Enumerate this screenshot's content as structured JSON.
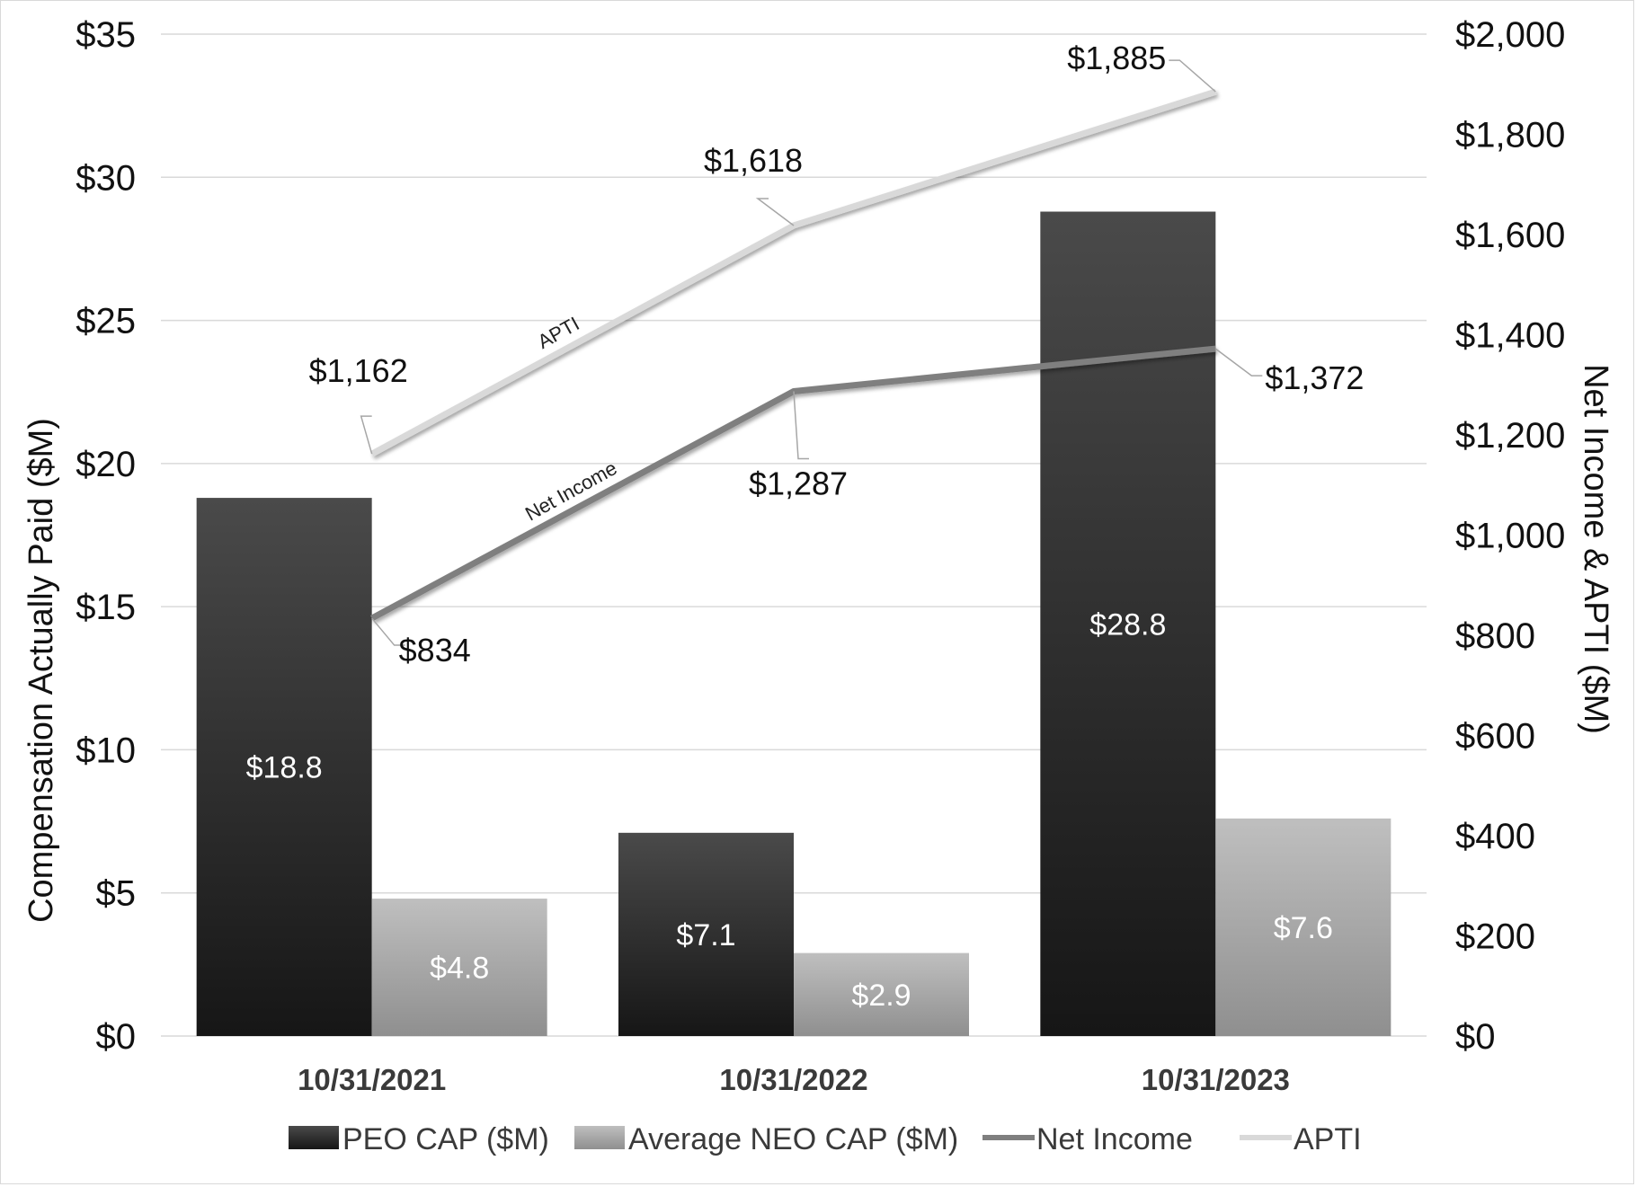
{
  "chart_data": {
    "type": "bar",
    "categories": [
      "10/31/2021",
      "10/31/2022",
      "10/31/2023"
    ],
    "series": [
      {
        "name": "PEO CAP ($M)",
        "type": "bar",
        "axis": "left",
        "values": [
          18.8,
          7.1,
          28.8
        ],
        "labels": [
          "$18.8",
          "$7.1",
          "$28.8"
        ],
        "color": "#2a2a2a"
      },
      {
        "name": "Average NEO CAP ($M)",
        "type": "bar",
        "axis": "left",
        "values": [
          4.8,
          2.9,
          7.6
        ],
        "labels": [
          "$4.8",
          "$2.9",
          "$7.6"
        ],
        "color": "#a6a6a6"
      },
      {
        "name": "Net Income",
        "type": "line",
        "axis": "right",
        "values": [
          834,
          1287,
          1372
        ],
        "labels": [
          "$834",
          "$1,287",
          "$1,372"
        ],
        "inline_label": "Net Income",
        "color": "#7f7f7f"
      },
      {
        "name": "APTI",
        "type": "line",
        "axis": "right",
        "values": [
          1162,
          1618,
          1885
        ],
        "labels": [
          "$1,162",
          "$1,618",
          "$1,885"
        ],
        "inline_label": "APTI",
        "color": "#d9d9d9"
      }
    ],
    "ylabel": "Compensation Actually Paid ($M)",
    "y2label": "Net Income & APTI ($M)",
    "ylim": [
      0,
      35
    ],
    "y2lim": [
      0,
      2000
    ],
    "yticks": [
      "$0",
      "$5",
      "$10",
      "$15",
      "$20",
      "$25",
      "$30",
      "$35"
    ],
    "y2ticks": [
      "$0",
      "$200",
      "$400",
      "$600",
      "$800",
      "$1,000",
      "$1,200",
      "$1,400",
      "$1,600",
      "$1,800",
      "$2,000"
    ],
    "grid": true,
    "legend_position": "bottom"
  }
}
